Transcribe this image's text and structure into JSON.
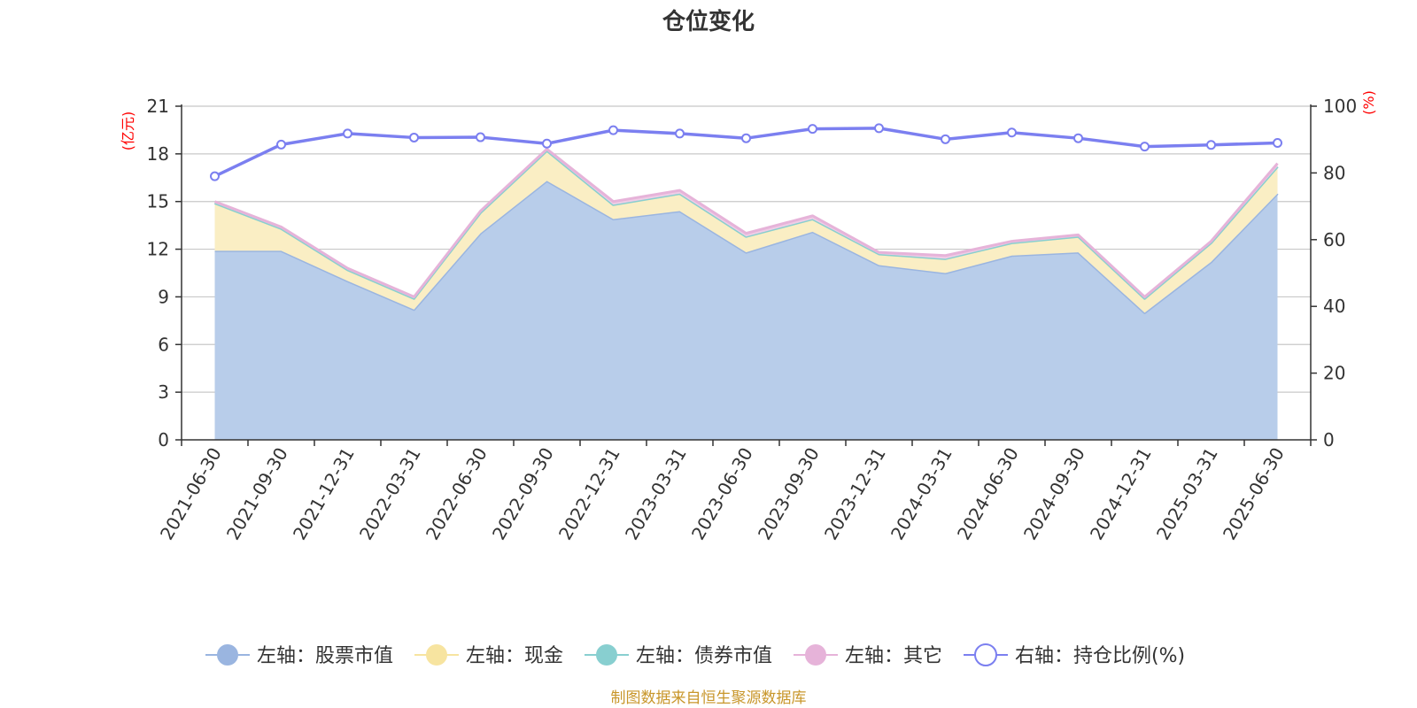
{
  "chart_data": {
    "type": "area",
    "title": "仓位变化",
    "x": [
      "2021-06-30",
      "2021-09-30",
      "2021-12-31",
      "2022-03-31",
      "2022-06-30",
      "2022-09-30",
      "2022-12-31",
      "2023-03-31",
      "2023-06-30",
      "2023-09-30",
      "2023-12-31",
      "2024-03-31",
      "2024-06-30",
      "2024-09-30",
      "2024-12-31",
      "2025-03-31",
      "2025-06-30"
    ],
    "left_axis": {
      "unit": "(亿元)",
      "ylim": [
        0,
        21
      ],
      "ticks": [
        0,
        3,
        6,
        9,
        12,
        15,
        18,
        21
      ]
    },
    "right_axis": {
      "unit": "(%)",
      "ylim": [
        0,
        100
      ],
      "ticks": [
        0,
        20,
        40,
        60,
        80,
        100
      ]
    },
    "stacked": true,
    "grid": true,
    "legend_position": "bottom",
    "series": [
      {
        "name": "左轴：股票市值",
        "axis": "left",
        "kind": "area",
        "color": "#9ab5e0",
        "fill": "#b8cdea",
        "values": [
          11.9,
          11.9,
          10.0,
          8.2,
          13.0,
          16.3,
          13.9,
          14.4,
          11.8,
          13.1,
          11.0,
          10.5,
          11.6,
          11.8,
          8.0,
          11.2,
          15.5
        ]
      },
      {
        "name": "左轴：现金",
        "axis": "left",
        "kind": "area",
        "color": "#f7e4a0",
        "fill": "#faeec4",
        "values": [
          3.0,
          1.4,
          0.7,
          0.7,
          1.3,
          1.9,
          0.9,
          1.1,
          1.0,
          0.8,
          0.7,
          0.9,
          0.8,
          1.0,
          0.9,
          1.2,
          1.7
        ]
      },
      {
        "name": "左轴：债券市值",
        "axis": "left",
        "kind": "area",
        "color": "#88cfd0",
        "fill": "#a8dcdc",
        "values": [
          0,
          0,
          0,
          0,
          0,
          0,
          0,
          0,
          0,
          0,
          0,
          0,
          0,
          0,
          0,
          0,
          0
        ]
      },
      {
        "name": "左轴：其它",
        "axis": "left",
        "kind": "area",
        "color": "#e6b3d9",
        "fill": "#efcde6",
        "values": [
          0.1,
          0.1,
          0.1,
          0.1,
          0.1,
          0.1,
          0.2,
          0.2,
          0.2,
          0.2,
          0.1,
          0.2,
          0.1,
          0.1,
          0.1,
          0.1,
          0.2
        ]
      },
      {
        "name": "右轴：持仓比例(%)",
        "axis": "right",
        "kind": "line",
        "color": "#7b7ff0",
        "values": [
          79.0,
          88.5,
          91.8,
          90.6,
          90.7,
          88.8,
          92.8,
          91.8,
          90.4,
          93.2,
          93.4,
          90.1,
          92.1,
          90.4,
          87.9,
          88.4,
          89.0
        ]
      }
    ]
  },
  "source_note": "制图数据来自恒生聚源数据库",
  "colors": {
    "axis": "#333333",
    "grid": "#c8c8c8",
    "unit": "#ff0000",
    "source": "#c8962a",
    "title": "#333333"
  }
}
